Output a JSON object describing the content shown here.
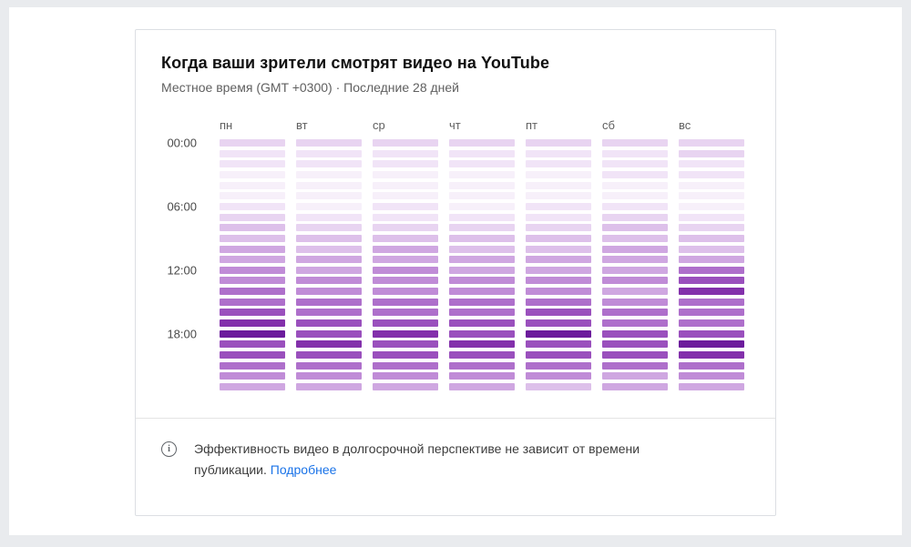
{
  "card": {
    "title": "Когда ваши зрители смотрят видео на YouTube",
    "subtitle": "Местное время (GMT +0300) · Последние 28 дней",
    "footer": {
      "info_text": "Эффективность видео в долгосрочной перспективе не зависит от времени публикации.",
      "link_label": "Подробнее"
    }
  },
  "chart_data": {
    "type": "heatmap",
    "title": "Когда ваши зрители смотрят видео на YouTube",
    "subtitle": "Местное время (GMT +0300) · Последние 28 дней",
    "columns": [
      "пн",
      "вт",
      "ср",
      "чт",
      "пт",
      "сб",
      "вс"
    ],
    "rows": [
      "00:00",
      "01:00",
      "02:00",
      "03:00",
      "04:00",
      "05:00",
      "06:00",
      "07:00",
      "08:00",
      "09:00",
      "10:00",
      "11:00",
      "12:00",
      "13:00",
      "14:00",
      "15:00",
      "16:00",
      "17:00",
      "18:00",
      "19:00",
      "20:00",
      "21:00",
      "22:00",
      "23:00"
    ],
    "visible_row_labels": [
      "00:00",
      "06:00",
      "12:00",
      "18:00"
    ],
    "value_scale": "relative viewing intensity, 0 (lowest) to 9 (highest)",
    "palette": [
      "#f7f0fa",
      "#f1e4f7",
      "#e8d4f1",
      "#ddc0ea",
      "#cfa7e1",
      "#c08cd7",
      "#ae6fcb",
      "#9a50bd",
      "#8330ab",
      "#6c1c9c"
    ],
    "values": [
      [
        2,
        2,
        2,
        2,
        2,
        2,
        2
      ],
      [
        1,
        1,
        1,
        1,
        1,
        1,
        2
      ],
      [
        1,
        1,
        1,
        1,
        1,
        1,
        1
      ],
      [
        0,
        0,
        0,
        0,
        0,
        1,
        1
      ],
      [
        0,
        0,
        0,
        0,
        0,
        0,
        0
      ],
      [
        0,
        0,
        0,
        0,
        0,
        0,
        0
      ],
      [
        1,
        0,
        1,
        0,
        1,
        1,
        0
      ],
      [
        2,
        1,
        1,
        1,
        1,
        2,
        1
      ],
      [
        3,
        2,
        2,
        2,
        2,
        3,
        2
      ],
      [
        3,
        3,
        3,
        3,
        3,
        3,
        3
      ],
      [
        4,
        3,
        4,
        3,
        3,
        4,
        3
      ],
      [
        4,
        4,
        4,
        4,
        4,
        4,
        4
      ],
      [
        5,
        4,
        5,
        4,
        4,
        4,
        6
      ],
      [
        5,
        5,
        5,
        5,
        5,
        5,
        7
      ],
      [
        6,
        5,
        5,
        5,
        5,
        4,
        8
      ],
      [
        6,
        6,
        6,
        6,
        6,
        5,
        6
      ],
      [
        7,
        6,
        6,
        6,
        7,
        6,
        6
      ],
      [
        8,
        7,
        7,
        7,
        7,
        6,
        6
      ],
      [
        9,
        7,
        8,
        7,
        9,
        7,
        7
      ],
      [
        7,
        8,
        7,
        8,
        7,
        7,
        9
      ],
      [
        7,
        7,
        7,
        7,
        7,
        7,
        8
      ],
      [
        6,
        6,
        6,
        6,
        6,
        6,
        6
      ],
      [
        5,
        5,
        5,
        5,
        5,
        4,
        5
      ],
      [
        4,
        4,
        4,
        4,
        3,
        4,
        4
      ]
    ],
    "legend_position": "none",
    "grid": false
  }
}
